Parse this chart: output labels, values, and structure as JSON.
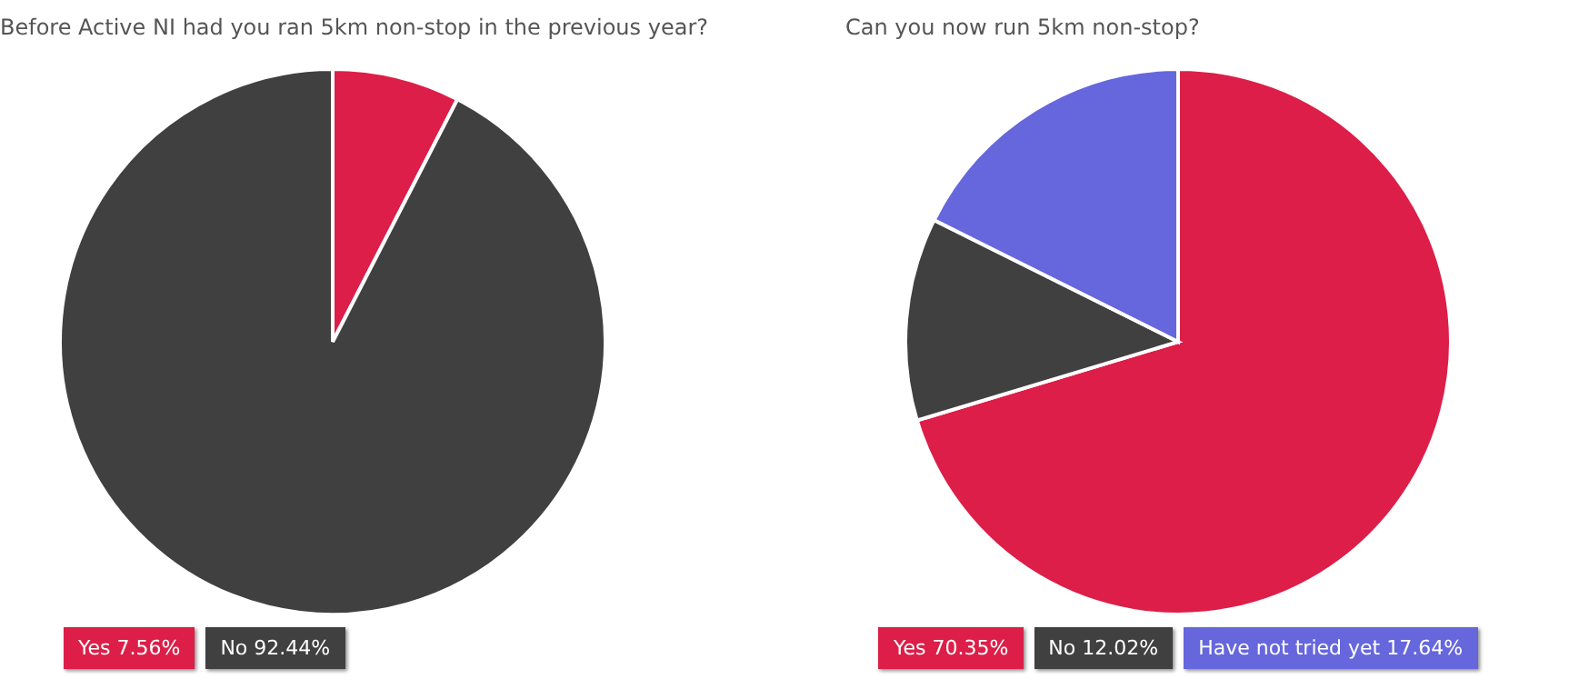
{
  "chart_data": [
    {
      "type": "pie",
      "title": "Before Active NI had you ran 5km non-stop in the previous year?",
      "categories": [
        "Yes",
        "No"
      ],
      "values": [
        7.56,
        92.44
      ],
      "colors": [
        "#dc1e48",
        "#404040"
      ],
      "value_labels": [
        "7.56%",
        "92.44%"
      ],
      "legend": "bottom left"
    },
    {
      "type": "pie",
      "title": "Can you now run 5km non-stop?",
      "categories": [
        "Yes",
        "No",
        "Have not tried yet"
      ],
      "values": [
        70.35,
        12.02,
        17.64
      ],
      "colors": [
        "#dc1e48",
        "#404040",
        "#6666dd"
      ],
      "value_labels": [
        "70.35%",
        "12.02%",
        "17.64%"
      ],
      "legend": "bottom"
    }
  ]
}
